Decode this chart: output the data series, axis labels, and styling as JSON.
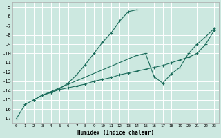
{
  "xlabel": "Humidex (Indice chaleur)",
  "xlim": [
    -0.5,
    23.5
  ],
  "ylim": [
    -17.5,
    -4.5
  ],
  "yticks": [
    -17,
    -16,
    -15,
    -14,
    -13,
    -12,
    -11,
    -10,
    -9,
    -8,
    -7,
    -6,
    -5
  ],
  "xticks": [
    0,
    1,
    2,
    3,
    4,
    5,
    6,
    7,
    8,
    9,
    10,
    11,
    12,
    13,
    14,
    15,
    16,
    17,
    18,
    19,
    20,
    21,
    22,
    23
  ],
  "background_color": "#cce8e0",
  "grid_color": "#ffffff",
  "line_color": "#1a6b5a",
  "line1_x": [
    0,
    1,
    2,
    3,
    4,
    5,
    6,
    7,
    8,
    9,
    10,
    11,
    12,
    13,
    14
  ],
  "line1_y": [
    -17.0,
    -15.5,
    -15.0,
    -14.5,
    -14.2,
    -13.8,
    -13.2,
    -12.3,
    -11.2,
    -10.0,
    -8.8,
    -7.8,
    -6.5,
    -5.5,
    -5.3
  ],
  "line2_x": [
    2,
    3,
    4,
    5,
    6,
    7,
    8,
    9,
    10,
    11,
    12,
    13,
    14,
    15,
    16,
    17,
    18,
    19,
    20,
    21,
    22,
    23
  ],
  "line2_y": [
    -15.0,
    -14.5,
    -14.2,
    -13.9,
    -13.7,
    -13.5,
    -13.3,
    -13.0,
    -12.8,
    -12.6,
    -12.3,
    -12.1,
    -11.9,
    -11.7,
    -11.5,
    -11.3,
    -11.0,
    -10.7,
    -10.4,
    -10.0,
    -9.0,
    -7.5
  ],
  "line3_x": [
    2,
    3,
    14,
    15,
    16,
    17,
    18,
    19,
    20,
    21,
    22,
    23
  ],
  "line3_y": [
    -15.0,
    -14.5,
    -10.2,
    -10.0,
    -12.5,
    -13.2,
    -12.2,
    -11.5,
    -10.0,
    -9.0,
    -8.2,
    -7.3
  ]
}
